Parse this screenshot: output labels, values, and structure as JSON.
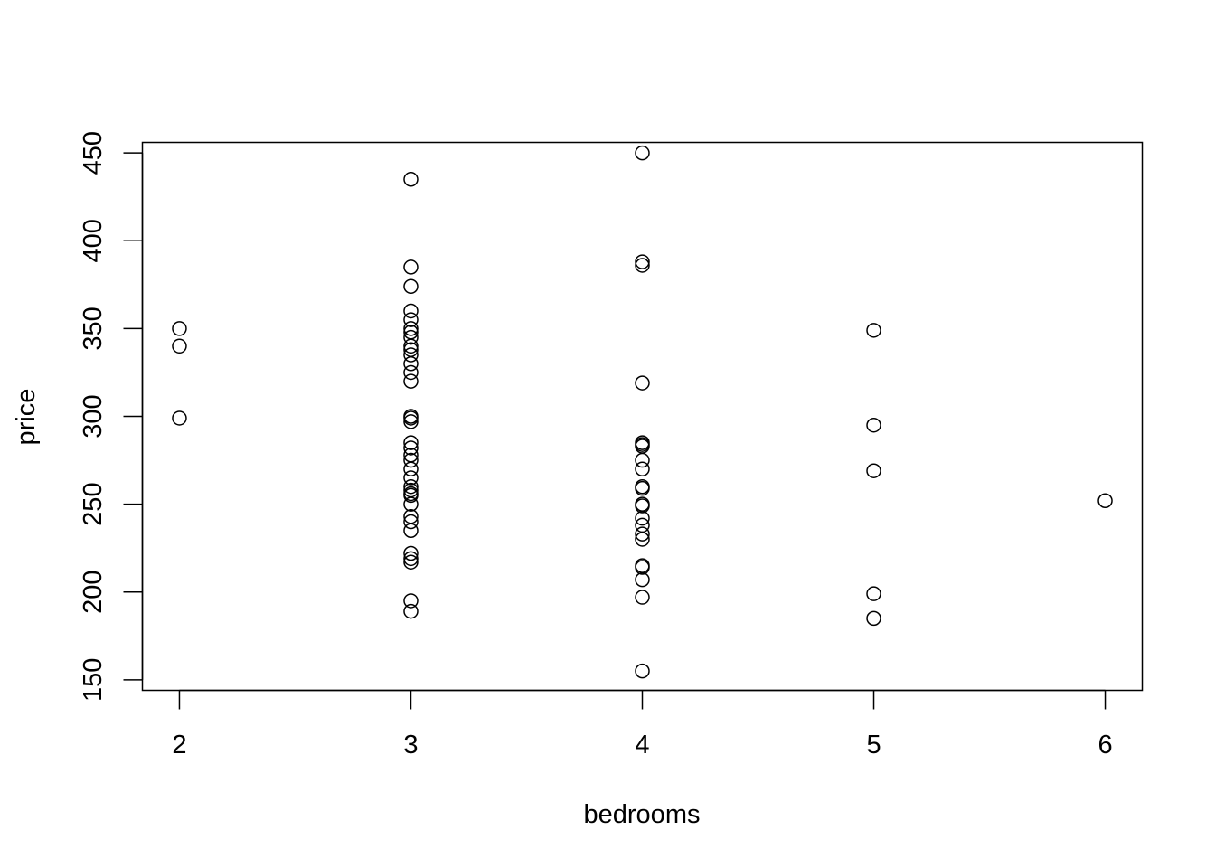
{
  "chart_data": {
    "type": "scatter",
    "title": "",
    "xlabel": "bedrooms",
    "ylabel": "price",
    "xlim": [
      1.84,
      6.16
    ],
    "ylim": [
      144,
      456
    ],
    "x_ticks": [
      2,
      3,
      4,
      5,
      6
    ],
    "y_ticks": [
      150,
      200,
      250,
      300,
      350,
      400,
      450
    ],
    "x_tick_labels": [
      "2",
      "3",
      "4",
      "5",
      "6"
    ],
    "y_tick_labels": [
      "150",
      "200",
      "250",
      "300",
      "350",
      "400",
      "450"
    ],
    "grid": false,
    "legend": "none",
    "marker": "open-circle",
    "points": [
      [
        2,
        350
      ],
      [
        2,
        340
      ],
      [
        2,
        299
      ],
      [
        3,
        435
      ],
      [
        3,
        385
      ],
      [
        3,
        374
      ],
      [
        3,
        360
      ],
      [
        3,
        355
      ],
      [
        3,
        350
      ],
      [
        3,
        348
      ],
      [
        3,
        345
      ],
      [
        3,
        340
      ],
      [
        3,
        338
      ],
      [
        3,
        335
      ],
      [
        3,
        330
      ],
      [
        3,
        325
      ],
      [
        3,
        320
      ],
      [
        3,
        300
      ],
      [
        3,
        299
      ],
      [
        3,
        297
      ],
      [
        3,
        285
      ],
      [
        3,
        282
      ],
      [
        3,
        278
      ],
      [
        3,
        275
      ],
      [
        3,
        270
      ],
      [
        3,
        265
      ],
      [
        3,
        260
      ],
      [
        3,
        258
      ],
      [
        3,
        256
      ],
      [
        3,
        255
      ],
      [
        3,
        250
      ],
      [
        3,
        243
      ],
      [
        3,
        240
      ],
      [
        3,
        235
      ],
      [
        3,
        222
      ],
      [
        3,
        219
      ],
      [
        3,
        217
      ],
      [
        3,
        195
      ],
      [
        3,
        189
      ],
      [
        4,
        450
      ],
      [
        4,
        388
      ],
      [
        4,
        386
      ],
      [
        4,
        319
      ],
      [
        4,
        285
      ],
      [
        4,
        284
      ],
      [
        4,
        283
      ],
      [
        4,
        275
      ],
      [
        4,
        270
      ],
      [
        4,
        260
      ],
      [
        4,
        259
      ],
      [
        4,
        250
      ],
      [
        4,
        249
      ],
      [
        4,
        242
      ],
      [
        4,
        238
      ],
      [
        4,
        233
      ],
      [
        4,
        230
      ],
      [
        4,
        215
      ],
      [
        4,
        214
      ],
      [
        4,
        207
      ],
      [
        4,
        197
      ],
      [
        4,
        155
      ],
      [
        5,
        349
      ],
      [
        5,
        295
      ],
      [
        5,
        269
      ],
      [
        5,
        199
      ],
      [
        5,
        185
      ],
      [
        6,
        252
      ]
    ]
  }
}
